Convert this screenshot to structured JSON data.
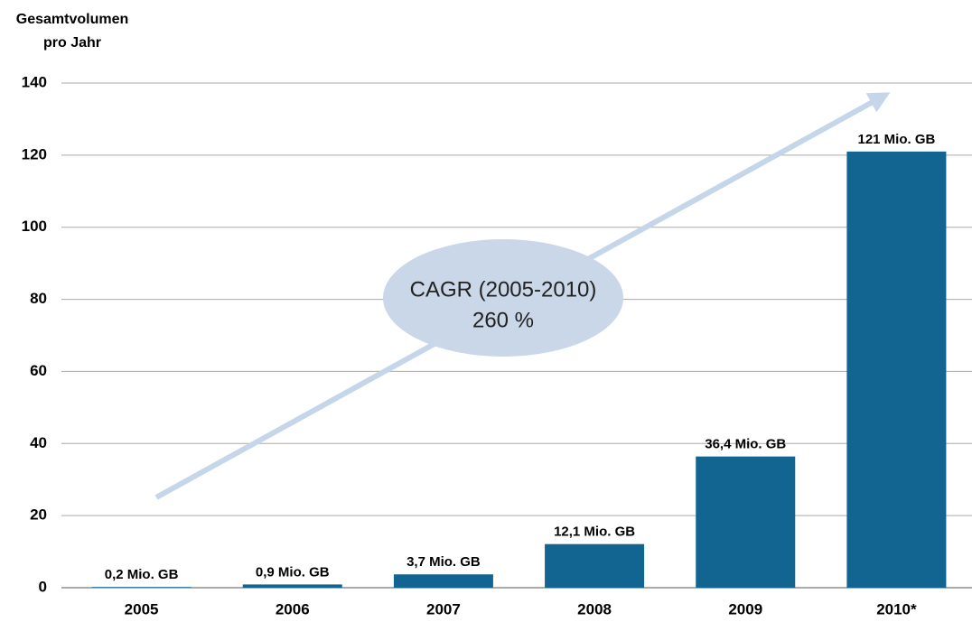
{
  "chart_data": {
    "type": "bar",
    "ylabel": [
      "Gesamtvolumen",
      "pro Jahr"
    ],
    "categories": [
      "2005",
      "2006",
      "2007",
      "2008",
      "2009",
      "2010*"
    ],
    "values": [
      0.2,
      0.9,
      3.7,
      12.1,
      36.4,
      121
    ],
    "value_labels": [
      "0,2 Mio. GB",
      "0,9 Mio. GB",
      "3,7 Mio. GB",
      "12,1 Mio. GB",
      "36,4 Mio. GB",
      "121 Mio. GB"
    ],
    "color": "#136591",
    "ylim": [
      0,
      140
    ],
    "yticks": [
      0,
      20,
      40,
      60,
      80,
      100,
      120,
      140
    ],
    "grid": true,
    "annotation": [
      "CAGR (2005-2010)",
      "260 %"
    ]
  }
}
